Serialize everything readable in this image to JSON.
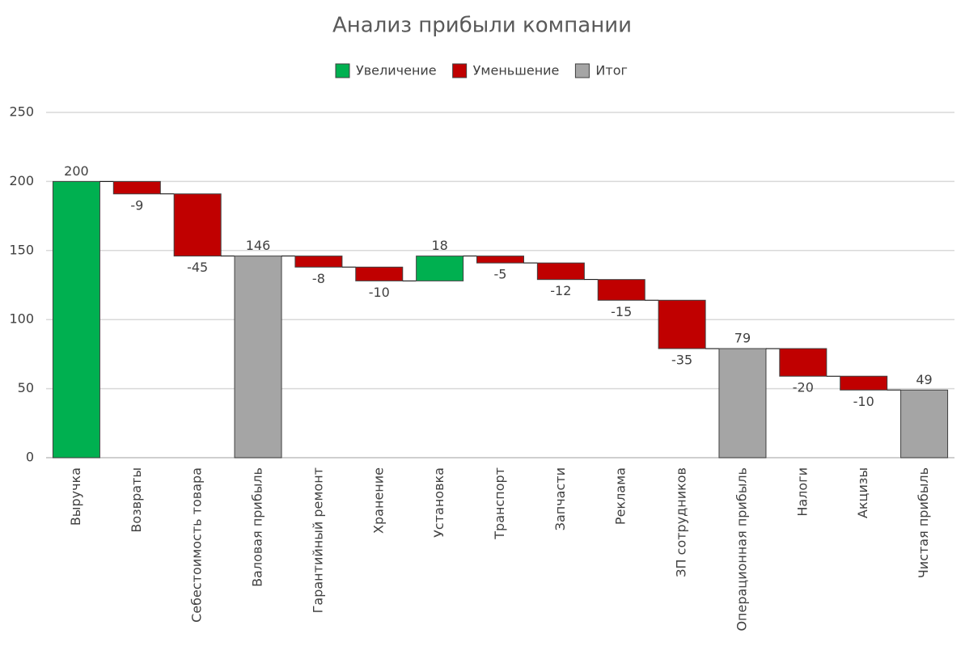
{
  "chart_data": {
    "type": "waterfall",
    "title": "Анализ прибыли компании",
    "categories": [
      "Выручка",
      "Возвраты",
      "Себестоимость товара",
      "Валовая прибыль",
      "Гарантийный ремонт",
      "Хранение",
      "Установка",
      "Транспорт",
      "Запчасти",
      "Реклама",
      "ЗП сотрудников",
      "Операционная прибыль",
      "Налоги",
      "Акцизы",
      "Чистая прибыль"
    ],
    "series": [
      {
        "name": "Увеличение",
        "color": "#00b050",
        "values": [
          200,
          null,
          null,
          null,
          null,
          null,
          18,
          null,
          null,
          null,
          null,
          null,
          null,
          null,
          null
        ]
      },
      {
        "name": "Уменьшение",
        "color": "#c00000",
        "values": [
          null,
          -9,
          -45,
          null,
          -8,
          -10,
          null,
          -5,
          -12,
          -15,
          -35,
          null,
          -20,
          -10,
          null
        ]
      },
      {
        "name": "Итог",
        "color": "#a5a5a5",
        "values": [
          null,
          null,
          null,
          146,
          null,
          null,
          null,
          null,
          null,
          null,
          null,
          79,
          null,
          null,
          49
        ]
      }
    ],
    "ylim": [
      0,
      250
    ],
    "yticks": [
      0,
      50,
      100,
      150,
      200,
      250
    ],
    "grid": true
  }
}
